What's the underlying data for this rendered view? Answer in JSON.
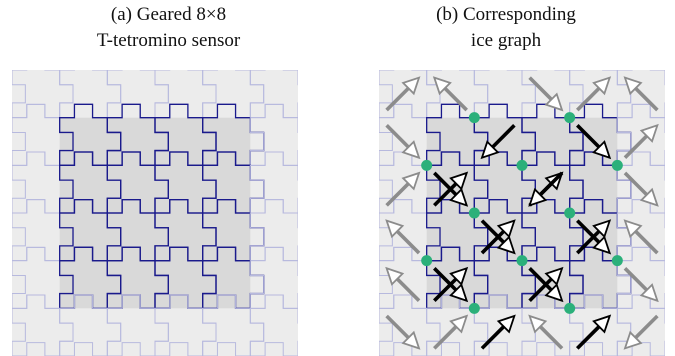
{
  "captions": {
    "a_line1": "(a) Geared 8×8",
    "a_line2": "T-tetromino sensor",
    "b_line1": "(b) Corresponding",
    "b_line2": "ice graph"
  },
  "grid": {
    "size": 6,
    "inner_range": [
      1,
      4
    ]
  },
  "colors": {
    "outer_fill": "#ececec",
    "inner_fill": "#d9d9d9",
    "light_lines": "#b7b9de",
    "dark_lines": "#1a1a8c",
    "node": "#2bb07a",
    "inner_arrow": "#000000",
    "outer_arrow": "#8c8c8c"
  },
  "ice_graph": {
    "nodes": [
      [
        2,
        1
      ],
      [
        4,
        1
      ],
      [
        1,
        2
      ],
      [
        3,
        2
      ],
      [
        5,
        2
      ],
      [
        2,
        3
      ],
      [
        4,
        3
      ],
      [
        1,
        4
      ],
      [
        3,
        4
      ],
      [
        5,
        4
      ],
      [
        2,
        5
      ],
      [
        4,
        5
      ]
    ],
    "inner_arrows": [
      [
        1,
        2,
        "ne"
      ],
      [
        2,
        1,
        "sw"
      ],
      [
        3,
        2,
        "ne"
      ],
      [
        4,
        1,
        "se"
      ],
      [
        1,
        2,
        "se"
      ],
      [
        2,
        3,
        "ne"
      ],
      [
        3,
        2,
        "sw"
      ],
      [
        4,
        3,
        "ne"
      ],
      [
        1,
        4,
        "ne"
      ],
      [
        2,
        3,
        "se"
      ],
      [
        3,
        4,
        "ne"
      ],
      [
        4,
        3,
        "se"
      ],
      [
        1,
        4,
        "se"
      ],
      [
        2,
        5,
        "ne"
      ],
      [
        3,
        4,
        "se"
      ],
      [
        4,
        5,
        "ne"
      ]
    ],
    "outer_arrows": [
      [
        0,
        0,
        "ne"
      ],
      [
        1,
        0,
        "nw"
      ],
      [
        3,
        0,
        "se"
      ],
      [
        4,
        0,
        "ne"
      ],
      [
        5,
        0,
        "nw"
      ],
      [
        0,
        1,
        "se"
      ],
      [
        5,
        1,
        "ne"
      ],
      [
        0,
        2,
        "ne"
      ],
      [
        5,
        2,
        "se"
      ],
      [
        0,
        3,
        "nw"
      ],
      [
        5,
        3,
        "nw"
      ],
      [
        0,
        4,
        "nw"
      ],
      [
        5,
        4,
        "se"
      ],
      [
        0,
        5,
        "se"
      ],
      [
        1,
        5,
        "ne"
      ],
      [
        3,
        5,
        "nw"
      ],
      [
        4,
        5,
        "ne"
      ],
      [
        5,
        5,
        "sw"
      ]
    ]
  }
}
